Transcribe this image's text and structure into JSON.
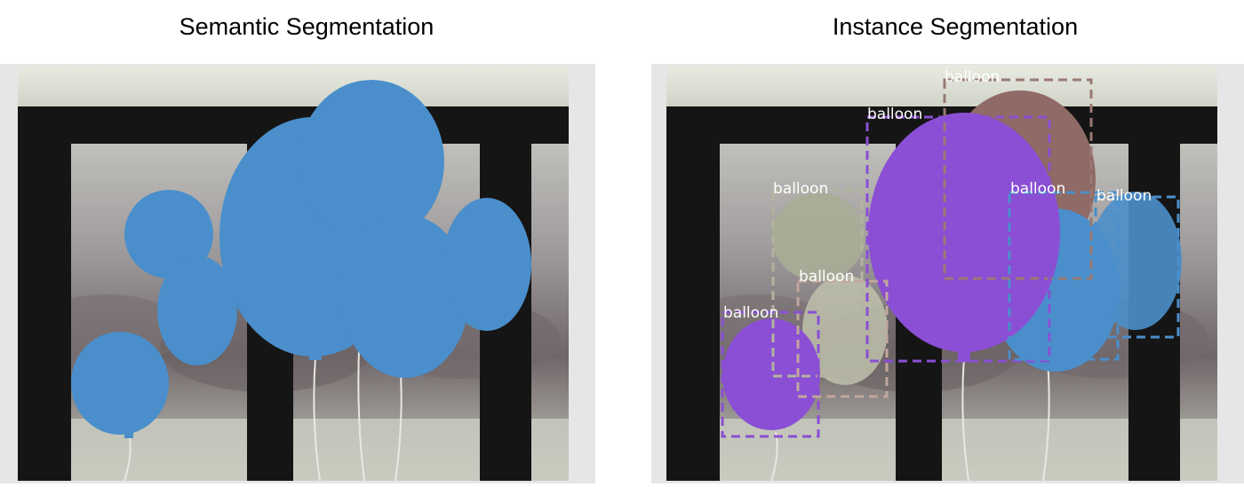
{
  "titles": {
    "left": "Semantic Segmentation",
    "right": "Instance Segmentation"
  },
  "semantic": {
    "mask_color": "#4a8fcb",
    "label": "balloon"
  },
  "instance": {
    "label": "balloon",
    "instances": [
      {
        "label": "balloon",
        "color": "#8f6a66",
        "box_color": "#9a7a74"
      },
      {
        "label": "balloon",
        "color": "#8a4fd4",
        "box_color": "#8a4fd4"
      },
      {
        "label": "balloon",
        "color": "#a8ad96",
        "box_color": "#b2b49e"
      },
      {
        "label": "balloon",
        "color": "#bfc1ad",
        "box_color": "#c2a79c"
      },
      {
        "label": "balloon",
        "color": "#8a4fd4",
        "box_color": "#8a4fd4"
      },
      {
        "label": "balloon",
        "color": "#4a8fcb",
        "box_color": "#4a8fcb"
      },
      {
        "label": "balloon",
        "color": "#4a8fcb",
        "box_color": "#4a8fcb"
      }
    ]
  },
  "colors": {
    "frame_dark": "#151515",
    "wall": "#d4d6cc",
    "foliage": "#6d6467",
    "grass": "#c9cbbf"
  }
}
